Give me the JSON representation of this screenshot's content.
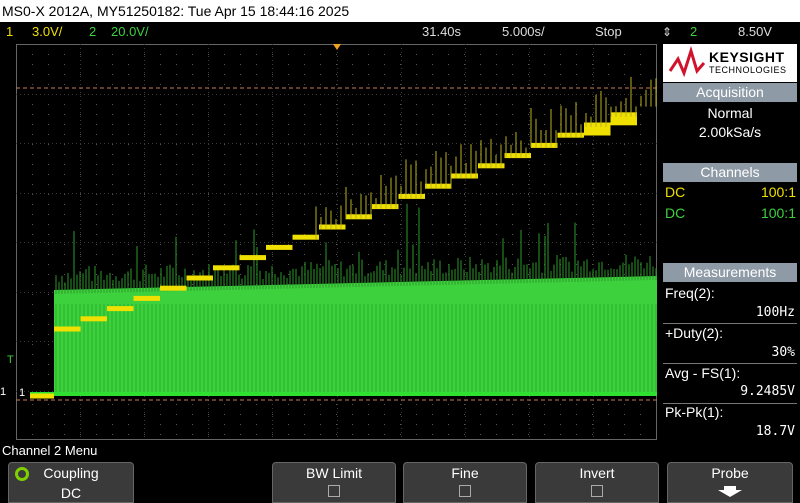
{
  "title": "MS0-X 2012A, MY51250182: Tue Apr 15 18:44:16 2025",
  "status": {
    "ch1_num": "1",
    "ch1_scale": "3.0V/",
    "ch2_num": "2",
    "ch2_scale": "20.0V/",
    "delay": "31.40s",
    "timebase": "5.000s/",
    "run_state": "Stop",
    "trigger_source": "2",
    "trigger_level": "8.50V"
  },
  "colors": {
    "ch1": "#f0e000",
    "ch2": "#3ed13e",
    "panel_header": "#8e9aa6",
    "brand": "#d0122d"
  },
  "logo": {
    "brand": "KEYSIGHT",
    "sub": "TECHNOLOGIES"
  },
  "acquisition": {
    "header": "Acquisition",
    "mode": "Normal",
    "rate": "2.00kSa/s"
  },
  "channels": {
    "header": "Channels",
    "rows": [
      {
        "coupling": "DC",
        "probe": "100:1"
      },
      {
        "coupling": "DC",
        "probe": "100:1"
      }
    ]
  },
  "measurements": {
    "header": "Measurements",
    "items": [
      {
        "label": "Freq(2):",
        "value": "100Hz"
      },
      {
        "label": "+Duty(2):",
        "value": "30%"
      },
      {
        "label": "Avg - FS(1):",
        "value": "9.2485V"
      },
      {
        "label": "Pk-Pk(1):",
        "value": "18.7V"
      }
    ]
  },
  "markers": {
    "trigger": "T",
    "ch1": "1"
  },
  "menu": {
    "title": "Channel 2 Menu",
    "softkeys": [
      {
        "label": "Coupling",
        "value": "DC"
      },
      {
        "label": "BW Limit"
      },
      {
        "label": "Fine"
      },
      {
        "label": "Invert"
      },
      {
        "label": "Probe"
      }
    ]
  }
}
